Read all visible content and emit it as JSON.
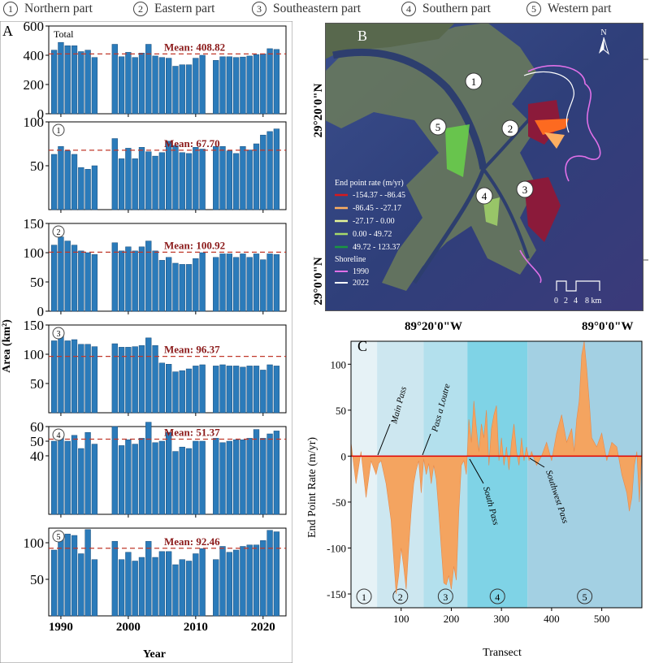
{
  "legend": {
    "items": [
      {
        "num": "1",
        "label": "Northern part"
      },
      {
        "num": "2",
        "label": "Eastern part"
      },
      {
        "num": "3",
        "label": "Southeastern part"
      },
      {
        "num": "4",
        "label": "Southern part"
      },
      {
        "num": "5",
        "label": "Western part"
      }
    ]
  },
  "chart_data": [
    {
      "type": "bar",
      "panel": "A",
      "xlabel": "Year",
      "ylabel": "Area (km²)",
      "x_ticks": [
        "1990",
        "2000",
        "2010",
        "2020"
      ],
      "years": [
        1989,
        1990,
        1991,
        1992,
        1993,
        1994,
        1995,
        1996,
        1998,
        1999,
        2000,
        2001,
        2002,
        2003,
        2004,
        2005,
        2006,
        2007,
        2008,
        2009,
        2010,
        2011,
        2013,
        2014,
        2015,
        2016,
        2017,
        2018,
        2019,
        2020,
        2021,
        2022
      ],
      "series": [
        {
          "name": "Total",
          "ylim": [
            0,
            600
          ],
          "yticks": [
            "0",
            "200",
            "400",
            "600"
          ],
          "mean_label": "Mean: 408.82",
          "mean": 408.82,
          "values": [
            435,
            488,
            465,
            465,
            425,
            435,
            385,
            0,
            475,
            390,
            420,
            385,
            415,
            475,
            395,
            385,
            380,
            325,
            335,
            335,
            380,
            400,
            365,
            390,
            390,
            385,
            388,
            395,
            405,
            410,
            445,
            440
          ]
        },
        {
          "name": "1",
          "ylim": [
            0,
            100
          ],
          "yticks": [
            "50",
            "100"
          ],
          "mean_label": "Mean: 67.70",
          "mean": 67.7,
          "values": [
            63,
            72,
            67,
            63,
            48,
            46,
            50,
            0,
            81,
            58,
            70,
            58,
            71,
            66,
            61,
            65,
            78,
            73,
            65,
            64,
            71,
            69,
            72,
            72,
            67,
            64,
            72,
            68,
            75,
            85,
            89,
            92
          ]
        },
        {
          "name": "2",
          "ylim": [
            0,
            150
          ],
          "yticks": [
            "0",
            "50",
            "100",
            "150"
          ],
          "mean_label": "Mean: 100.92",
          "mean": 100.92,
          "values": [
            113,
            127,
            120,
            113,
            103,
            100,
            97,
            0,
            117,
            103,
            110,
            103,
            110,
            120,
            103,
            87,
            92,
            82,
            80,
            80,
            90,
            100,
            92,
            98,
            98,
            92,
            98,
            92,
            98,
            88,
            98,
            97
          ]
        },
        {
          "name": "3",
          "ylim": [
            0,
            150
          ],
          "yticks": [
            "50",
            "100",
            "150"
          ],
          "mean_label": "Mean: 96.37",
          "mean": 96.37,
          "values": [
            123,
            135,
            123,
            125,
            117,
            117,
            113,
            0,
            118,
            112,
            112,
            113,
            115,
            128,
            115,
            85,
            83,
            70,
            72,
            75,
            80,
            82,
            80,
            82,
            80,
            80,
            78,
            80,
            80,
            73,
            82,
            80
          ]
        },
        {
          "name": "4",
          "ylim": [
            0,
            60
          ],
          "yticks": [
            "40",
            "50",
            "60"
          ],
          "mean_label": "Mean: 51.37",
          "mean": 51.37,
          "values": [
            50,
            54,
            50,
            54,
            45,
            56,
            48,
            0,
            60,
            47,
            51,
            48,
            52,
            63,
            49,
            50,
            56,
            43,
            46,
            45,
            50,
            50,
            52,
            49,
            50,
            51,
            51,
            52,
            58,
            52,
            55,
            57
          ]
        },
        {
          "name": "5",
          "ylim": [
            0,
            120
          ],
          "yticks": [
            "50",
            "100"
          ],
          "mean_label": "Mean: 92.46",
          "mean": 92.46,
          "values": [
            90,
            110,
            112,
            110,
            85,
            118,
            77,
            0,
            102,
            77,
            87,
            75,
            80,
            102,
            80,
            88,
            88,
            70,
            77,
            75,
            85,
            92,
            77,
            95,
            87,
            90,
            95,
            97,
            97,
            103,
            117,
            115
          ]
        }
      ]
    },
    {
      "type": "line",
      "panel": "C",
      "xlabel": "Transect",
      "ylabel": "End Point Rate (m/yr)",
      "xlim": [
        0,
        580
      ],
      "ylim": [
        -165,
        125
      ],
      "x_ticks": [
        "100",
        "200",
        "300",
        "400",
        "500"
      ],
      "y_ticks": [
        "-150",
        "-100",
        "-50",
        "0",
        "50",
        "100"
      ],
      "zone_bounds": [
        0,
        52,
        145,
        232,
        352,
        580
      ],
      "zone_labels": [
        "1",
        "2",
        "3",
        "4",
        "5"
      ],
      "annotations": [
        "Main Pass",
        "Pass a Loutre",
        "South Pass",
        "Southwest Pass"
      ],
      "x": [
        0,
        10,
        20,
        30,
        40,
        50,
        55,
        60,
        70,
        80,
        85,
        90,
        95,
        100,
        105,
        110,
        115,
        120,
        125,
        130,
        135,
        140,
        145,
        150,
        155,
        160,
        165,
        170,
        175,
        180,
        185,
        190,
        195,
        200,
        205,
        210,
        215,
        220,
        225,
        230,
        235,
        240,
        245,
        250,
        255,
        260,
        265,
        270,
        275,
        280,
        285,
        290,
        295,
        300,
        305,
        310,
        315,
        320,
        325,
        330,
        335,
        340,
        345,
        350,
        355,
        360,
        370,
        380,
        390,
        400,
        410,
        420,
        430,
        440,
        445,
        450,
        455,
        460,
        465,
        470,
        475,
        480,
        490,
        500,
        510,
        520,
        530,
        540,
        550,
        555,
        560,
        565,
        570,
        575,
        580
      ],
      "y": [
        15,
        -30,
        5,
        -45,
        -5,
        -20,
        -8,
        -5,
        -30,
        -70,
        -110,
        -150,
        -130,
        -100,
        -120,
        -145,
        -100,
        -60,
        -30,
        -15,
        -5,
        -40,
        -3,
        -20,
        -8,
        -30,
        -10,
        -25,
        -60,
        -100,
        -138,
        -140,
        -130,
        -145,
        -120,
        -135,
        -60,
        -10,
        -5,
        -20,
        40,
        15,
        60,
        30,
        5,
        35,
        20,
        50,
        -10,
        30,
        45,
        55,
        -5,
        20,
        -10,
        10,
        -15,
        15,
        35,
        5,
        -10,
        20,
        -5,
        10,
        -5,
        5,
        -10,
        0,
        15,
        -5,
        25,
        45,
        15,
        30,
        5,
        40,
        60,
        110,
        125,
        95,
        60,
        20,
        10,
        25,
        -5,
        15,
        10,
        -20,
        -40,
        -60,
        -45,
        -10,
        5,
        -50,
        10
      ]
    }
  ],
  "panelA": {
    "label": "A",
    "ylabel": "Area (km²)",
    "xlabel": "Year",
    "total_title": "Total",
    "xticks": [
      "1990",
      "2000",
      "2010",
      "2020"
    ]
  },
  "panelB": {
    "label": "B",
    "lat_labels": [
      "29°20'0\"N",
      "29°0'0\"N"
    ],
    "lon_labels": [
      "89°20'0\"W",
      "89°0'0\"W"
    ],
    "north": "N",
    "scale_labels": [
      "0",
      "2",
      "4",
      "8 km"
    ],
    "region_labels": [
      "1",
      "2",
      "3",
      "4",
      "5"
    ],
    "legend_title": "End point rate (m/yr)",
    "legend_items": [
      {
        "label": "-154.37 - -86.45",
        "color": "#d7191c"
      },
      {
        "label": "-86.45 - -27.17",
        "color": "#fdae61"
      },
      {
        "label": "-27.17 - 0.00",
        "color": "#e6f598"
      },
      {
        "label": "0.00 - 49.72",
        "color": "#a6d96a"
      },
      {
        "label": "49.72 - 123.37",
        "color": "#1a9641"
      }
    ],
    "shoreline_title": "Shoreline",
    "shorelines": [
      {
        "label": "1990",
        "color": "#e070e8"
      },
      {
        "label": "2022",
        "color": "#ffffff"
      }
    ]
  },
  "panelC": {
    "label": "C",
    "xlabel": "Transect",
    "ylabel": "End Point Rate (m/yr)"
  },
  "colors": {
    "bar": "#2b7bba",
    "mean_line": "#c0392b",
    "mean_text": "#8b1a1a",
    "epr_fill": "#f4a460",
    "zero_line": "#e00000"
  }
}
